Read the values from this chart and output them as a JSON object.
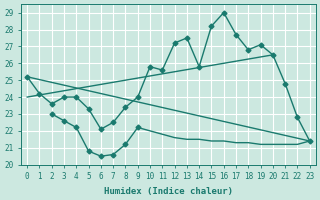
{
  "xlabel": "Humidex (Indice chaleur)",
  "background_color": "#cce8e0",
  "grid_color": "#ffffff",
  "line_color": "#1a7a6e",
  "xlim": [
    -0.5,
    23.5
  ],
  "ylim": [
    20,
    29.5
  ],
  "xticks": [
    0,
    1,
    2,
    3,
    4,
    5,
    6,
    7,
    8,
    9,
    10,
    11,
    12,
    13,
    14,
    15,
    16,
    17,
    18,
    19,
    20,
    21,
    22,
    23
  ],
  "yticks": [
    20,
    21,
    22,
    23,
    24,
    25,
    26,
    27,
    28,
    29
  ],
  "main_curve_x": [
    0,
    1,
    2,
    3,
    4,
    5,
    6,
    7,
    8,
    9,
    10,
    11,
    12,
    13,
    14,
    15,
    16,
    17,
    18,
    19,
    20,
    21,
    22,
    23
  ],
  "main_curve_y": [
    25.2,
    24.2,
    23.6,
    24.0,
    24.0,
    23.3,
    22.1,
    22.5,
    23.4,
    24.0,
    25.8,
    25.6,
    27.2,
    27.5,
    25.8,
    28.2,
    29.0,
    27.7,
    26.8,
    27.1,
    26.5,
    24.8,
    22.8,
    21.4
  ],
  "trend_line1_x": [
    0,
    23
  ],
  "trend_line1_y": [
    25.2,
    21.4
  ],
  "trend_line2_x": [
    0,
    20
  ],
  "trend_line2_y": [
    24.0,
    26.5
  ],
  "lower_curve_x": [
    2,
    3,
    4,
    5,
    6,
    7,
    8,
    9,
    10,
    11,
    12,
    13,
    14,
    15,
    16,
    17,
    18,
    19,
    20,
    21,
    22,
    23
  ],
  "lower_curve_y": [
    23.0,
    22.6,
    22.2,
    20.8,
    20.5,
    20.6,
    21.2,
    22.2,
    22.0,
    21.8,
    21.6,
    21.5,
    21.5,
    21.4,
    21.4,
    21.3,
    21.3,
    21.2,
    21.2,
    21.2,
    21.2,
    21.4
  ],
  "lower_marked_x": [
    2,
    3,
    4,
    5,
    6,
    7,
    8,
    9
  ],
  "lower_marked_y": [
    23.0,
    22.6,
    22.2,
    20.8,
    20.5,
    20.6,
    21.2,
    22.2
  ]
}
